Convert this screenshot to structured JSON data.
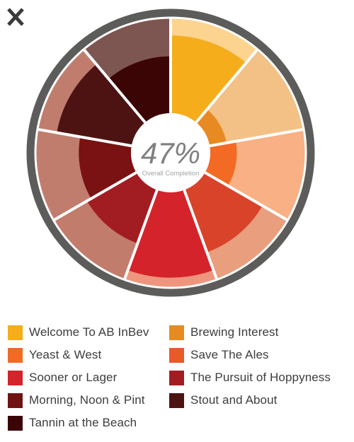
{
  "close_button": {
    "icon": "close-icon",
    "color": "#3a3a3a"
  },
  "center": {
    "value": "47%",
    "caption": "Overall Completion"
  },
  "chart_data": {
    "type": "radial-bar",
    "title": "",
    "center_value_percent": 47,
    "center_caption": "Overall Completion",
    "categories": [
      "Welcome To AB InBev",
      "Brewing Interest",
      "Yeast & West",
      "Save The Ales",
      "Sooner or Lager",
      "The Pursuit of Hoppyness",
      "Morning, Noon & Pint",
      "Stout and About",
      "Tannin at the Beach"
    ],
    "completion": [
      0.82,
      0.18,
      0.28,
      0.7,
      0.9,
      0.6,
      0.55,
      0.8,
      0.6
    ],
    "colors": [
      "#f5ad1c",
      "#e88a22",
      "#f26a24",
      "#d9432a",
      "#d4232b",
      "#a21d22",
      "#7a1112",
      "#4d1312",
      "#3b0505"
    ],
    "background_colors": [
      "#fcd38f",
      "#f3c086",
      "#f8b084",
      "#e99e7e",
      "#ef957d",
      "#c17c6c",
      "#c07d6e",
      "#c07d6e",
      "#7d5652"
    ]
  },
  "legend": {
    "items": [
      {
        "label": "Welcome To AB InBev",
        "color": "#f5ad1c"
      },
      {
        "label": "Brewing Interest",
        "color": "#e88a22"
      },
      {
        "label": "Yeast & West",
        "color": "#f26a24"
      },
      {
        "label": "Save The Ales",
        "color": "#e9592a"
      },
      {
        "label": "Sooner or Lager",
        "color": "#d4232b"
      },
      {
        "label": "The Pursuit of Hoppyness",
        "color": "#a21d22"
      },
      {
        "label": "Morning, Noon & Pint",
        "color": "#6f1413"
      },
      {
        "label": "Stout and About",
        "color": "#4d1312"
      },
      {
        "label": "Tannin at the Beach",
        "color": "#3b0505"
      }
    ]
  },
  "ring_color": "#5c5c5b"
}
